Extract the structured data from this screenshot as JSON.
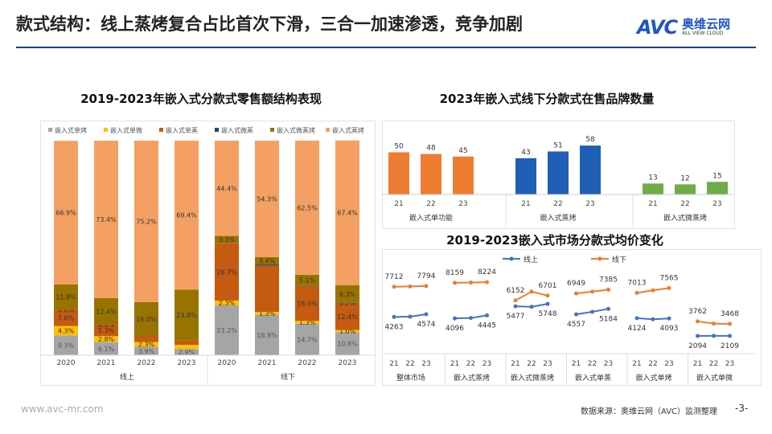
{
  "header": {
    "title": "款式结构：线上蒸烤复合占比首次下滑，三合一加速渗透，竞争加剧",
    "logo_text": "AVC",
    "logo_cn": "奥维云网",
    "logo_en": "ALL VIEW CLOUD"
  },
  "footer": {
    "url": "www.avc-mr.com",
    "source": "数据来源：奥维云网（AVC）监测整理",
    "page": "-3-"
  },
  "chart_data": [
    {
      "type": "bar",
      "stacked": true,
      "percent": true,
      "title": "2019-2023年嵌入式分款式零售额结构表现",
      "legend_position": "top",
      "categories": [
        "2020",
        "2021",
        "2022",
        "2023",
        "2020",
        "2021",
        "2022",
        "2023"
      ],
      "groups": [
        {
          "label": "线上",
          "span": 4
        },
        {
          "label": "线下",
          "span": 4
        }
      ],
      "series": [
        {
          "name": "嵌入式单烤",
          "color": "#a5a5a5",
          "values": [
            9.3,
            6.1,
            3.9,
            2.9,
            23.2,
            18.9,
            14.7,
            10.8
          ],
          "labels": [
            "9.3%",
            "6.1%",
            "3.9%",
            "2.9%",
            "23.2%",
            "18.9%",
            "14.7%",
            "10.8%"
          ]
        },
        {
          "name": "嵌入式单微",
          "color": "#ffc000",
          "values": [
            4.3,
            2.8,
            2.3,
            1.9,
            2.3,
            1.3,
            1.3,
            1.0
          ],
          "labels": [
            "4.3%",
            "2.8%",
            "2.3%",
            "",
            "2.3%",
            "1.3%",
            "1.3%",
            "1.0%"
          ]
        },
        {
          "name": "嵌入式单蒸",
          "color": "#c55a11",
          "values": [
            7.6,
            5.3,
            2.6,
            2.0,
            26.7,
            21.6,
            16.3,
            12.4
          ],
          "labels": [
            "7.6%",
            "5.3%",
            "",
            "",
            "26.7%",
            "",
            "16.3%",
            "12.4%"
          ]
        },
        {
          "name": "嵌入式微蒸",
          "color": "#264478",
          "values": [
            0.0,
            0.0,
            0.0,
            0.0,
            0.1,
            0.5,
            0.1,
            0.2
          ],
          "labels": [
            "0.0%",
            "0.0%",
            "",
            "",
            "",
            "",
            "",
            "0.2%"
          ]
        },
        {
          "name": "嵌入式微蒸烤",
          "color": "#997300",
          "values": [
            11.8,
            12.4,
            16.0,
            23.8,
            3.3,
            3.4,
            5.1,
            8.3
          ],
          "labels": [
            "11.8%",
            "12.4%",
            "16.0%",
            "23.8%",
            "3.3%",
            "3.4%",
            "5.1%",
            "8.3%"
          ]
        },
        {
          "name": "嵌入式蒸烤",
          "color": "#f4a062",
          "values": [
            66.9,
            73.4,
            75.2,
            69.4,
            44.4,
            54.3,
            62.5,
            67.4
          ],
          "labels": [
            "66.9%",
            "73.4%",
            "75.2%",
            "69.4%",
            "44.4%",
            "54.3%",
            "62.5%",
            "67.4%"
          ]
        }
      ]
    },
    {
      "type": "bar",
      "title": "2023年嵌入式线下分款式在售品牌数量",
      "groups": [
        {
          "label": "嵌入式单功能",
          "color": "#ed7d31",
          "categories": [
            "21",
            "22",
            "23"
          ],
          "values": [
            50,
            48,
            45
          ]
        },
        {
          "label": "嵌入式蒸烤",
          "color": "#1f5fb5",
          "categories": [
            "21",
            "22",
            "23"
          ],
          "values": [
            43,
            51,
            58
          ]
        },
        {
          "label": "嵌入式微蒸烤",
          "color": "#70ad47",
          "categories": [
            "21",
            "22",
            "23"
          ],
          "values": [
            13,
            12,
            15
          ]
        }
      ]
    },
    {
      "type": "line",
      "title": "2019-2023嵌入式市场分款式均价变化",
      "legend_position": "top",
      "groups": [
        "整体市场",
        "嵌入式蒸烤",
        "嵌入式微蒸烤",
        "嵌入式单蒸",
        "嵌入式单烤",
        "嵌入式单微"
      ],
      "categories": [
        "21",
        "22",
        "23"
      ],
      "series": [
        {
          "name": "线上",
          "color": "#4472c4",
          "values": [
            [
              4263,
              4300,
              4574
            ],
            [
              4096,
              4150,
              4445
            ],
            [
              5477,
              5420,
              5748
            ],
            [
              4557,
              4850,
              5184
            ],
            [
              4124,
              4000,
              4093
            ],
            [
              2094,
              2100,
              2109
            ]
          ]
        },
        {
          "name": "线下",
          "color": "#ed7d31",
          "values": [
            [
              7712,
              7750,
              7794
            ],
            [
              8159,
              8190,
              8224
            ],
            [
              6152,
              7150,
              6701
            ],
            [
              6949,
              7150,
              7385
            ],
            [
              7013,
              7300,
              7565
            ],
            [
              3762,
              3500,
              3468
            ]
          ]
        }
      ]
    }
  ]
}
